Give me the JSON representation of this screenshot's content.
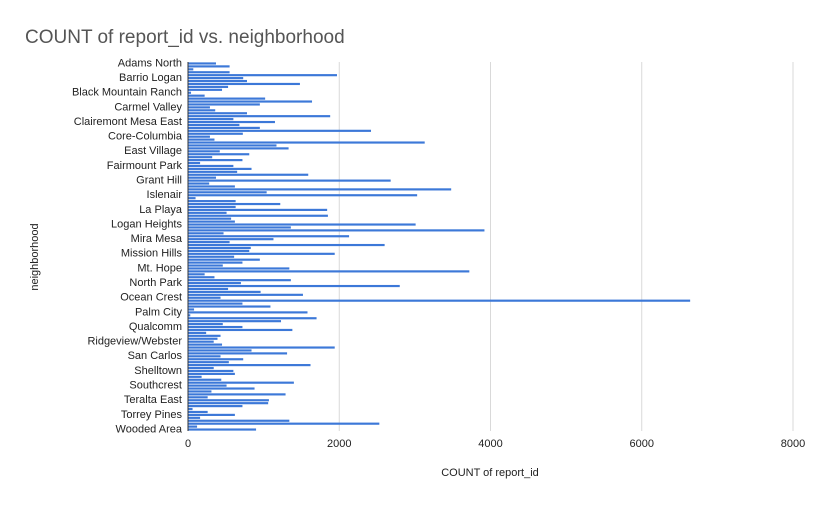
{
  "chart_data": {
    "type": "hbar",
    "title": "COUNT of report_id vs. neighborhood",
    "x_label": "COUNT of report_id",
    "y_label": "neighborhood",
    "color": "#3c78d8",
    "categories": [
      "Adams North",
      null,
      null,
      null,
      null,
      "Barrio Logan",
      null,
      null,
      null,
      null,
      "Black Mountain Ranch",
      null,
      null,
      null,
      null,
      "Carmel Valley",
      null,
      null,
      null,
      null,
      "Clairemont Mesa East",
      null,
      null,
      null,
      null,
      "Core-Columbia",
      null,
      null,
      null,
      null,
      "East Village",
      null,
      null,
      null,
      null,
      "Fairmount Park",
      null,
      null,
      null,
      null,
      "Grant Hill",
      null,
      null,
      null,
      null,
      "Islenair",
      null,
      null,
      null,
      null,
      "La Playa",
      null,
      null,
      null,
      null,
      "Logan Heights",
      null,
      null,
      null,
      null,
      "Mira Mesa",
      null,
      null,
      null,
      null,
      "Mission Hills",
      null,
      null,
      null,
      null,
      "Mt. Hope",
      null,
      null,
      null,
      null,
      "North Park",
      null,
      null,
      null,
      null,
      "Ocean Crest",
      null,
      null,
      null,
      null,
      "Palm City",
      null,
      null,
      null,
      null,
      "Qualcomm",
      null,
      null,
      null,
      null,
      "Ridgeview/Webster",
      null,
      null,
      null,
      null,
      "San Carlos",
      null,
      null,
      null,
      null,
      "Shelltown",
      null,
      null,
      null,
      null,
      "Southcrest",
      null,
      null,
      null,
      null,
      "Teralta East",
      null,
      null,
      null,
      null,
      "Torrey Pines",
      null,
      null,
      null,
      null,
      "Wooded Area"
    ],
    "values": [
      370,
      550,
      70,
      550,
      1970,
      730,
      780,
      1480,
      530,
      450,
      40,
      220,
      1020,
      1640,
      950,
      290,
      360,
      780,
      1880,
      600,
      1150,
      680,
      950,
      2420,
      725,
      290,
      350,
      3130,
      1170,
      1330,
      420,
      810,
      320,
      720,
      160,
      600,
      840,
      650,
      1590,
      370,
      2680,
      280,
      620,
      3480,
      1040,
      3030,
      100,
      630,
      1220,
      630,
      1840,
      510,
      1850,
      570,
      620,
      3010,
      1360,
      3920,
      470,
      2130,
      1130,
      550,
      2600,
      830,
      810,
      1940,
      610,
      950,
      720,
      460,
      1340,
      3720,
      220,
      350,
      1360,
      700,
      2800,
      530,
      960,
      1520,
      430,
      6640,
      720,
      1090,
      80,
      1580,
      30,
      1700,
      1230,
      460,
      720,
      1380,
      240,
      430,
      390,
      340,
      450,
      1940,
      840,
      1310,
      430,
      730,
      540,
      1620,
      340,
      600,
      620,
      180,
      440,
      1400,
      510,
      880,
      310,
      1290,
      260,
      1070,
      1060,
      720,
      60,
      260,
      620,
      160,
      1340,
      2530,
      120,
      900
    ],
    "xlim": [
      0,
      8000
    ],
    "xticks": [
      0,
      2000,
      4000,
      6000,
      8000
    ],
    "grid": true
  }
}
